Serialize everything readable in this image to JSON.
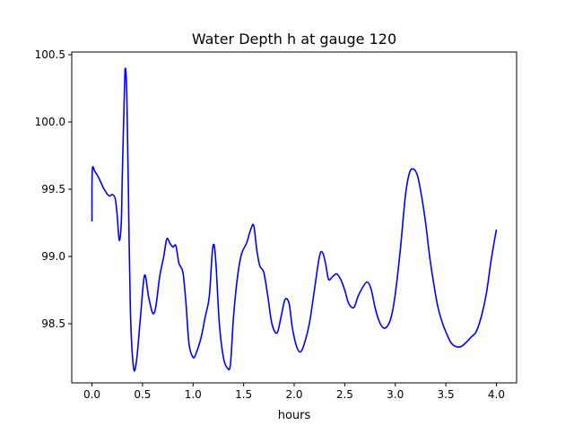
{
  "chart_data": {
    "type": "line",
    "title": "Water Depth h at gauge 120",
    "xlabel": "hours",
    "ylabel": "",
    "xlim": [
      -0.2,
      4.2
    ],
    "ylim": [
      98.06,
      100.52
    ],
    "xticks": [
      0.0,
      0.5,
      1.0,
      1.5,
      2.0,
      2.5,
      3.0,
      3.5,
      4.0
    ],
    "xtick_labels": [
      "0.0",
      "0.5",
      "1.0",
      "1.5",
      "2.0",
      "2.5",
      "3.0",
      "3.5",
      "4.0"
    ],
    "yticks": [
      98.5,
      99.0,
      99.5,
      100.0,
      100.5
    ],
    "ytick_labels": [
      "98.5",
      "99.0",
      "99.5",
      "100.0",
      "100.5"
    ],
    "grid": false,
    "legend": "none",
    "series": [
      {
        "color": "#0000ff",
        "x": [
          0.0,
          0.003,
          0.03,
          0.07,
          0.12,
          0.17,
          0.2,
          0.23,
          0.25,
          0.27,
          0.29,
          0.3,
          0.32,
          0.33,
          0.345,
          0.36,
          0.38,
          0.41,
          0.44,
          0.48,
          0.52,
          0.56,
          0.6,
          0.63,
          0.67,
          0.71,
          0.74,
          0.77,
          0.8,
          0.83,
          0.86,
          0.9,
          0.93,
          0.96,
          1.0,
          1.03,
          1.08,
          1.12,
          1.16,
          1.19,
          1.21,
          1.23,
          1.26,
          1.3,
          1.34,
          1.37,
          1.4,
          1.44,
          1.48,
          1.53,
          1.57,
          1.6,
          1.63,
          1.66,
          1.7,
          1.74,
          1.78,
          1.83,
          1.87,
          1.91,
          1.95,
          1.98,
          2.02,
          2.06,
          2.1,
          2.15,
          2.2,
          2.25,
          2.28,
          2.31,
          2.34,
          2.38,
          2.42,
          2.46,
          2.5,
          2.54,
          2.59,
          2.63,
          2.67,
          2.72,
          2.76,
          2.8,
          2.84,
          2.88,
          2.92,
          2.96,
          3.0,
          3.05,
          3.1,
          3.14,
          3.18,
          3.22,
          3.26,
          3.3,
          3.34,
          3.38,
          3.42,
          3.46,
          3.5,
          3.55,
          3.6,
          3.65,
          3.7,
          3.75,
          3.8,
          3.85,
          3.9,
          3.95,
          4.0
        ],
        "y": [
          99.26,
          99.64,
          99.63,
          99.58,
          99.5,
          99.45,
          99.46,
          99.43,
          99.3,
          99.12,
          99.25,
          99.6,
          100.2,
          100.4,
          100.2,
          99.5,
          98.6,
          98.18,
          98.22,
          98.55,
          98.86,
          98.7,
          98.58,
          98.62,
          98.85,
          99.0,
          99.13,
          99.1,
          99.07,
          99.08,
          98.95,
          98.88,
          98.65,
          98.35,
          98.25,
          98.28,
          98.4,
          98.55,
          98.7,
          99.03,
          99.08,
          98.9,
          98.5,
          98.25,
          98.17,
          98.2,
          98.55,
          98.85,
          99.02,
          99.1,
          99.2,
          99.23,
          99.05,
          98.93,
          98.88,
          98.7,
          98.5,
          98.43,
          98.55,
          98.68,
          98.65,
          98.48,
          98.34,
          98.29,
          98.35,
          98.5,
          98.75,
          99.0,
          99.03,
          98.95,
          98.83,
          98.85,
          98.87,
          98.83,
          98.75,
          98.65,
          98.62,
          98.7,
          98.76,
          98.81,
          98.76,
          98.62,
          98.52,
          98.47,
          98.48,
          98.55,
          98.72,
          99.05,
          99.45,
          99.62,
          99.65,
          99.6,
          99.45,
          99.25,
          99.0,
          98.8,
          98.63,
          98.52,
          98.44,
          98.36,
          98.33,
          98.33,
          98.36,
          98.4,
          98.44,
          98.55,
          98.72,
          98.98,
          99.2
        ]
      }
    ]
  }
}
